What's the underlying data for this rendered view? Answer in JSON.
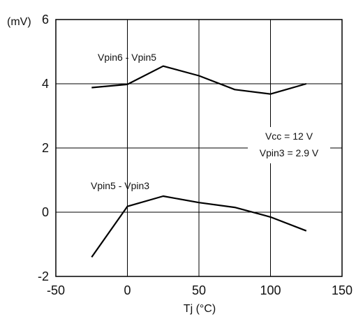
{
  "chart_data": {
    "type": "line",
    "xlabel": "Tj  (°C)",
    "ylabel": "(mV)",
    "xlim": [
      -50,
      150
    ],
    "ylim": [
      -2,
      6
    ],
    "xticks": [
      -50,
      0,
      50,
      100,
      150
    ],
    "yticks": [
      -2,
      0,
      2,
      4,
      6
    ],
    "grid": true,
    "series": [
      {
        "name": "Vpin6  - Vpin5",
        "x": [
          -25,
          0,
          25,
          50,
          75,
          100,
          125
        ],
        "y": [
          3.88,
          3.98,
          4.55,
          4.25,
          3.82,
          3.68,
          4.0
        ]
      },
      {
        "name": "Vpin5  - Vpin3",
        "x": [
          -25,
          0,
          25,
          50,
          75,
          100,
          125
        ],
        "y": [
          -1.4,
          0.18,
          0.5,
          0.3,
          0.15,
          -0.15,
          -0.58
        ]
      }
    ],
    "annotations": [
      "Vcc = 12 V",
      "Vpin3 = 2.9 V"
    ]
  }
}
